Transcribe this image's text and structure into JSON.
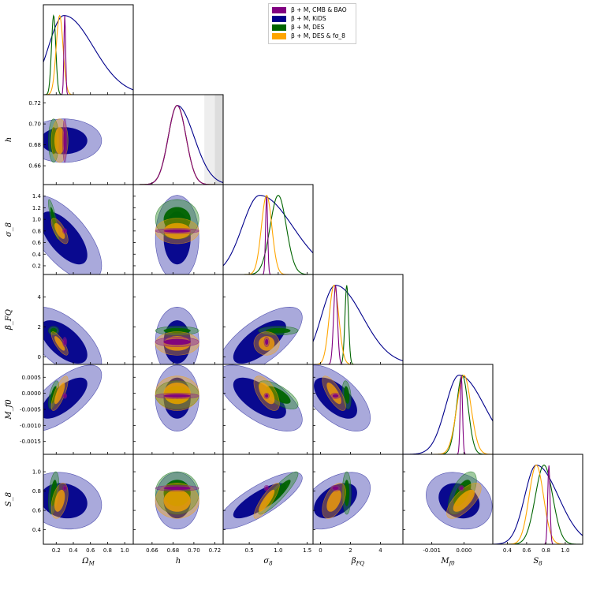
{
  "chart_data": {
    "type": "corner-plot",
    "title": "",
    "parameters": [
      {
        "key": "Om",
        "label": "Ω_M",
        "range": [
          0.05,
          1.1
        ],
        "ticks": [
          0.2,
          0.4,
          0.6,
          0.8,
          1.0
        ],
        "tick_labels": [
          "0.2",
          "0.4",
          "0.6",
          "0.8",
          "1.0"
        ]
      },
      {
        "key": "h",
        "label": "h",
        "range": [
          0.642,
          0.728
        ],
        "ticks": [
          0.66,
          0.68,
          0.7,
          0.72
        ],
        "tick_labels": [
          "0.66",
          "0.68",
          "0.70",
          "0.72"
        ]
      },
      {
        "key": "s8",
        "label": "σ_8",
        "range": [
          0.05,
          1.6
        ],
        "ticks": [
          0.2,
          0.4,
          0.6,
          0.8,
          1.0,
          1.2,
          1.4
        ],
        "tick_labels": [
          "0.2",
          "0.4",
          "0.6",
          "0.8",
          "1.0",
          "1.2",
          "1.4"
        ],
        "x_ticks": [
          0.5,
          1.0,
          1.5
        ],
        "x_tick_labels": [
          "0.5",
          "1.0",
          "1.5"
        ]
      },
      {
        "key": "bfq",
        "label": "β_FQ",
        "range": [
          -0.5,
          5.5
        ],
        "ticks": [
          0,
          2,
          4
        ],
        "tick_labels": [
          "0",
          "2",
          "4"
        ]
      },
      {
        "key": "Mf",
        "label": "M_f0",
        "range": [
          -0.0019,
          0.0009
        ],
        "ticks": [
          -0.0015,
          -0.001,
          -0.0005,
          0.0,
          0.0005
        ],
        "tick_labels": [
          "-0.0015",
          "-0.0010",
          "-0.0005",
          "0.0000",
          "0.0005"
        ],
        "x_ticks": [
          -0.001,
          0.0
        ],
        "x_tick_labels": [
          "-0.001",
          "0.000"
        ]
      },
      {
        "key": "S8",
        "label": "S_8",
        "range": [
          0.25,
          1.18
        ],
        "ticks": [
          0.4,
          0.6,
          0.8,
          1.0
        ],
        "tick_labels": [
          "0.4",
          "0.6",
          "0.8",
          "1.0"
        ]
      }
    ],
    "axis_labels": {
      "x": [
        "Ω",
        "h",
        "σ",
        "β",
        "M",
        "S"
      ],
      "x_sub": [
        "M",
        "",
        "8",
        "FQ",
        "f0",
        "8"
      ]
    },
    "legend": {
      "position": "top-right",
      "entries": [
        {
          "label": "β + M, CMB & BAO",
          "color": "#800080"
        },
        {
          "label": "β + M, KiDS",
          "color": "#00008b"
        },
        {
          "label": "β + M, DES",
          "color": "#006400"
        },
        {
          "label": "β + M, DES & fσ_8",
          "color": "#ffa500"
        }
      ]
    },
    "h_prior_band": {
      "light": [
        0.71,
        0.72
      ],
      "dark": [
        0.72,
        0.728
      ]
    },
    "series": [
      {
        "name": "CMB & BAO",
        "color": "#800080",
        "fill": "#8e2a8e",
        "mean": {
          "Om": 0.3,
          "h": 0.684,
          "s8": 0.8,
          "bfq": 1.0,
          "Mf": -8e-05,
          "S8": 0.83
        },
        "sd": {
          "Om": 0.01,
          "h": 0.0085,
          "s8": 0.018,
          "bfq": 0.13,
          "Mf": 3.5e-05,
          "S8": 0.012
        },
        "corr": {
          "h,Mf": 0.0
        }
      },
      {
        "name": "KiDS",
        "color": "#00008b",
        "fill": "#4040b0",
        "mean": {
          "Om": 0.29,
          "h": 0.684,
          "s8": 0.68,
          "bfq": 1.0,
          "Mf": -0.00015,
          "S8": 0.7
        },
        "sd": {
          "Om": 0.18,
          "h": 0.0085,
          "s8": 0.3,
          "bfq": 0.95,
          "Mf": 0.00042,
          "S8": 0.12
        },
        "corr": {
          "Om,s8": -0.65,
          "Om,bfq": -0.6,
          "Om,Mf": 0.7,
          "s8,bfq": 0.7,
          "s8,Mf": -0.65,
          "s8,S8": 0.8,
          "bfq,Mf": -0.6,
          "bfq,S8": 0.45,
          "Mf,S8": -0.2,
          "Om,S8": -0.15
        }
      },
      {
        "name": "DES",
        "color": "#006400",
        "fill": "#2e8b2e",
        "mean": {
          "Om": 0.17,
          "h": 0.684,
          "s8": 1.0,
          "bfq": 1.75,
          "Mf": -5e-05,
          "S8": 0.78
        },
        "sd": {
          "Om": 0.025,
          "h": 0.0085,
          "s8": 0.14,
          "bfq": 0.12,
          "Mf": 0.00018,
          "S8": 0.09
        },
        "corr": {
          "Om,s8": -0.85,
          "Om,S8": 0.4,
          "s8,S8": 0.9,
          "s8,Mf": -0.7,
          "Om,Mf": 0.6,
          "bfq,Mf": -0.3,
          "Mf,S8": 0.6
        }
      },
      {
        "name": "DES & fσ_8",
        "color": "#ffa500",
        "fill": "#ffa500",
        "mean": {
          "Om": 0.24,
          "h": 0.684,
          "s8": 0.8,
          "bfq": 0.9,
          "Mf": 0.0,
          "S8": 0.7
        },
        "sd": {
          "Om": 0.04,
          "h": 0.0085,
          "s8": 0.09,
          "bfq": 0.32,
          "Mf": 0.00022,
          "S8": 0.075
        },
        "corr": {
          "Om,s8": -0.7,
          "Om,bfq": -0.8,
          "Om,Mf": 0.75,
          "s8,S8": 0.85,
          "bfq,Mf": -0.75,
          "s8,Mf": -0.6,
          "bfq,S8": 0.5,
          "Mf,S8": 0.7,
          "Om,S8": 0.4
        }
      }
    ]
  }
}
